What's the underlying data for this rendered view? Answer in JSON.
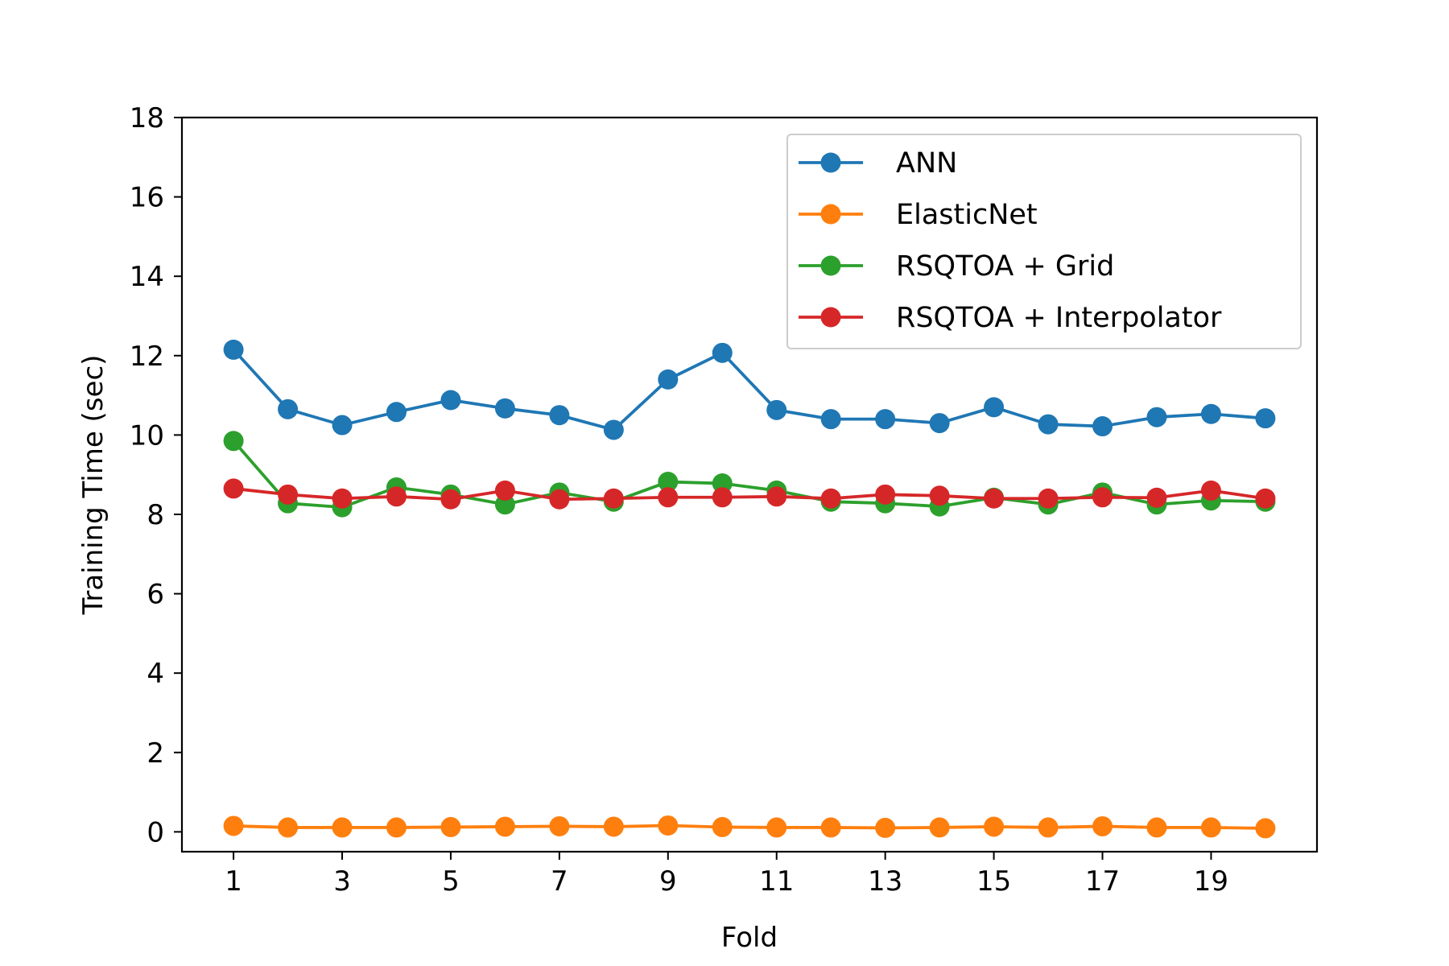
{
  "chart_data": {
    "type": "line",
    "title": "",
    "xlabel": "Fold",
    "ylabel": "Training Time (sec)",
    "xlim": [
      0.05,
      20.95
    ],
    "ylim": [
      -0.5,
      18
    ],
    "xticks": [
      1,
      3,
      5,
      7,
      9,
      11,
      13,
      15,
      17,
      19
    ],
    "yticks": [
      0,
      2,
      4,
      6,
      8,
      10,
      12,
      14,
      16,
      18
    ],
    "grid": false,
    "legend_position": "upper right",
    "x": [
      1,
      2,
      3,
      4,
      5,
      6,
      7,
      8,
      9,
      10,
      11,
      12,
      13,
      14,
      15,
      16,
      17,
      18,
      19,
      20
    ],
    "series": [
      {
        "name": "ANN",
        "color": "#1f77b4",
        "marker": "circle",
        "values": [
          12.15,
          10.65,
          10.25,
          10.58,
          10.88,
          10.67,
          10.5,
          10.13,
          11.4,
          12.07,
          10.63,
          10.4,
          10.4,
          10.3,
          10.7,
          10.27,
          10.22,
          10.45,
          10.53,
          10.42
        ]
      },
      {
        "name": "ElasticNet",
        "color": "#ff7f0e",
        "marker": "circle",
        "values": [
          0.15,
          0.11,
          0.11,
          0.11,
          0.12,
          0.13,
          0.14,
          0.13,
          0.16,
          0.12,
          0.11,
          0.11,
          0.1,
          0.11,
          0.13,
          0.11,
          0.14,
          0.11,
          0.11,
          0.09
        ]
      },
      {
        "name": "RSQTOA + Grid",
        "color": "#2ca02c",
        "marker": "circle",
        "values": [
          9.85,
          8.28,
          8.18,
          8.68,
          8.5,
          8.25,
          8.55,
          8.32,
          8.82,
          8.78,
          8.6,
          8.32,
          8.28,
          8.2,
          8.42,
          8.25,
          8.55,
          8.25,
          8.35,
          8.32
        ]
      },
      {
        "name": "RSQTOA + Interpolator",
        "color": "#d62728",
        "marker": "circle",
        "values": [
          8.65,
          8.5,
          8.4,
          8.45,
          8.38,
          8.6,
          8.38,
          8.4,
          8.43,
          8.43,
          8.45,
          8.4,
          8.5,
          8.47,
          8.4,
          8.4,
          8.43,
          8.42,
          8.6,
          8.4
        ]
      }
    ]
  }
}
